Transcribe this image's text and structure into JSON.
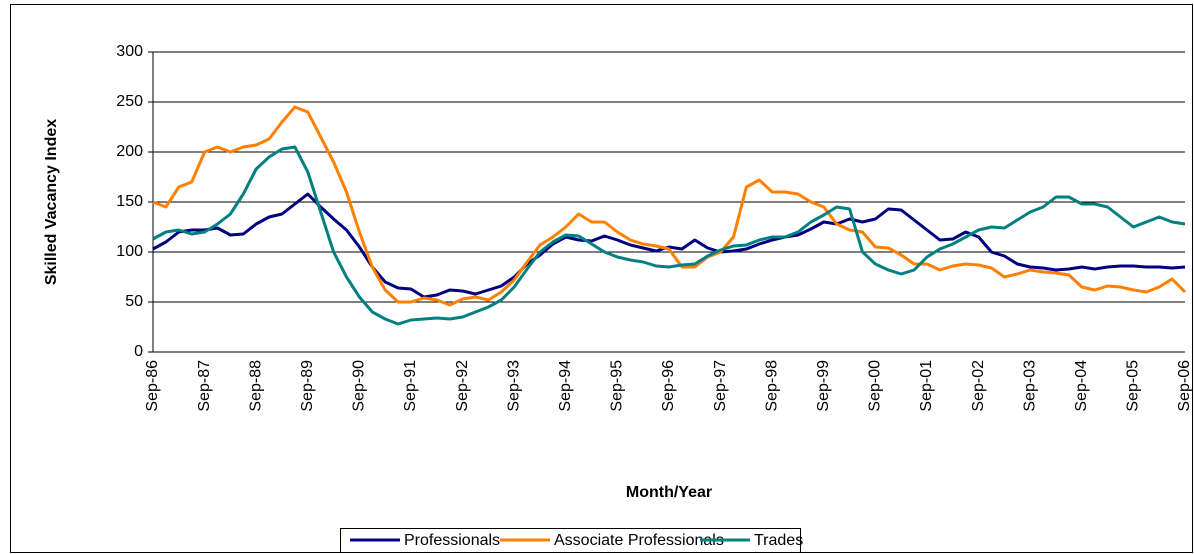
{
  "chart_data": {
    "type": "line",
    "y_label": "Skilled Vacancy Index",
    "x_label": "Month/Year",
    "categories": [
      "Sep-86",
      null,
      null,
      null,
      "Sep-87",
      null,
      null,
      null,
      "Sep-88",
      null,
      null,
      null,
      "Sep-89",
      null,
      null,
      null,
      "Sep-90",
      null,
      null,
      null,
      "Sep-91",
      null,
      null,
      null,
      "Sep-92",
      null,
      null,
      null,
      "Sep-93",
      null,
      null,
      null,
      "Sep-94",
      null,
      null,
      null,
      "Sep-95",
      null,
      null,
      null,
      "Sep-96",
      null,
      null,
      null,
      "Sep-97",
      null,
      null,
      null,
      "Sep-98",
      null,
      null,
      null,
      "Sep-99",
      null,
      null,
      null,
      "Sep-00",
      null,
      null,
      null,
      "Sep-01",
      null,
      null,
      null,
      "Sep-02",
      null,
      null,
      null,
      "Sep-03",
      null,
      null,
      null,
      "Sep-04",
      null,
      null,
      null,
      "Sep-05",
      null,
      null,
      null,
      "Sep-06"
    ],
    "series": [
      {
        "name": "Professionals",
        "color": "#000080",
        "values": [
          103,
          110,
          120,
          122,
          122,
          124,
          117,
          118,
          128,
          135,
          138,
          148,
          158,
          145,
          133,
          122,
          105,
          85,
          70,
          64,
          63,
          55,
          57,
          62,
          61,
          58,
          62,
          66,
          75,
          88,
          97,
          108,
          115,
          112,
          111,
          116,
          112,
          107,
          104,
          101,
          105,
          103,
          112,
          104,
          100,
          101,
          103,
          108,
          112,
          115,
          117,
          123,
          130,
          128,
          133,
          130,
          133,
          143,
          142,
          132,
          122,
          112,
          113,
          120,
          115,
          100,
          96,
          88,
          85,
          84,
          82,
          83,
          85,
          83,
          85,
          86,
          86,
          85,
          85,
          84,
          85
        ]
      },
      {
        "name": "Associate Professionals",
        "color": "#ff7f00",
        "values": [
          150,
          145,
          165,
          170,
          200,
          205,
          200,
          205,
          207,
          213,
          230,
          245,
          240,
          215,
          190,
          160,
          120,
          85,
          62,
          50,
          50,
          54,
          52,
          47,
          53,
          55,
          52,
          60,
          72,
          90,
          107,
          115,
          125,
          138,
          130,
          130,
          120,
          112,
          108,
          106,
          103,
          85,
          85,
          95,
          100,
          115,
          165,
          172,
          160,
          160,
          158,
          150,
          145,
          128,
          122,
          120,
          105,
          104,
          97,
          88,
          88,
          82,
          86,
          88,
          87,
          84,
          75,
          78,
          82,
          80,
          79,
          77,
          65,
          62,
          66,
          65,
          62,
          60,
          65,
          73,
          60
        ]
      },
      {
        "name": "Trades",
        "color": "#008080",
        "values": [
          113,
          120,
          122,
          118,
          120,
          128,
          138,
          158,
          183,
          195,
          203,
          205,
          180,
          140,
          100,
          75,
          55,
          40,
          33,
          28,
          32,
          33,
          34,
          33,
          35,
          40,
          45,
          52,
          65,
          83,
          100,
          110,
          117,
          116,
          108,
          100,
          95,
          92,
          90,
          86,
          85,
          87,
          88,
          96,
          102,
          106,
          107,
          112,
          115,
          115,
          120,
          130,
          137,
          145,
          143,
          100,
          88,
          82,
          78,
          82,
          95,
          103,
          108,
          115,
          122,
          125,
          124,
          132,
          140,
          145,
          155,
          155,
          148,
          148,
          145,
          135,
          125,
          130,
          135,
          130,
          128
        ]
      }
    ],
    "ylim": [
      0,
      300
    ],
    "yticks": [
      0,
      50,
      100,
      150,
      200,
      250,
      300
    ],
    "grid": true,
    "legend": "bottom"
  }
}
